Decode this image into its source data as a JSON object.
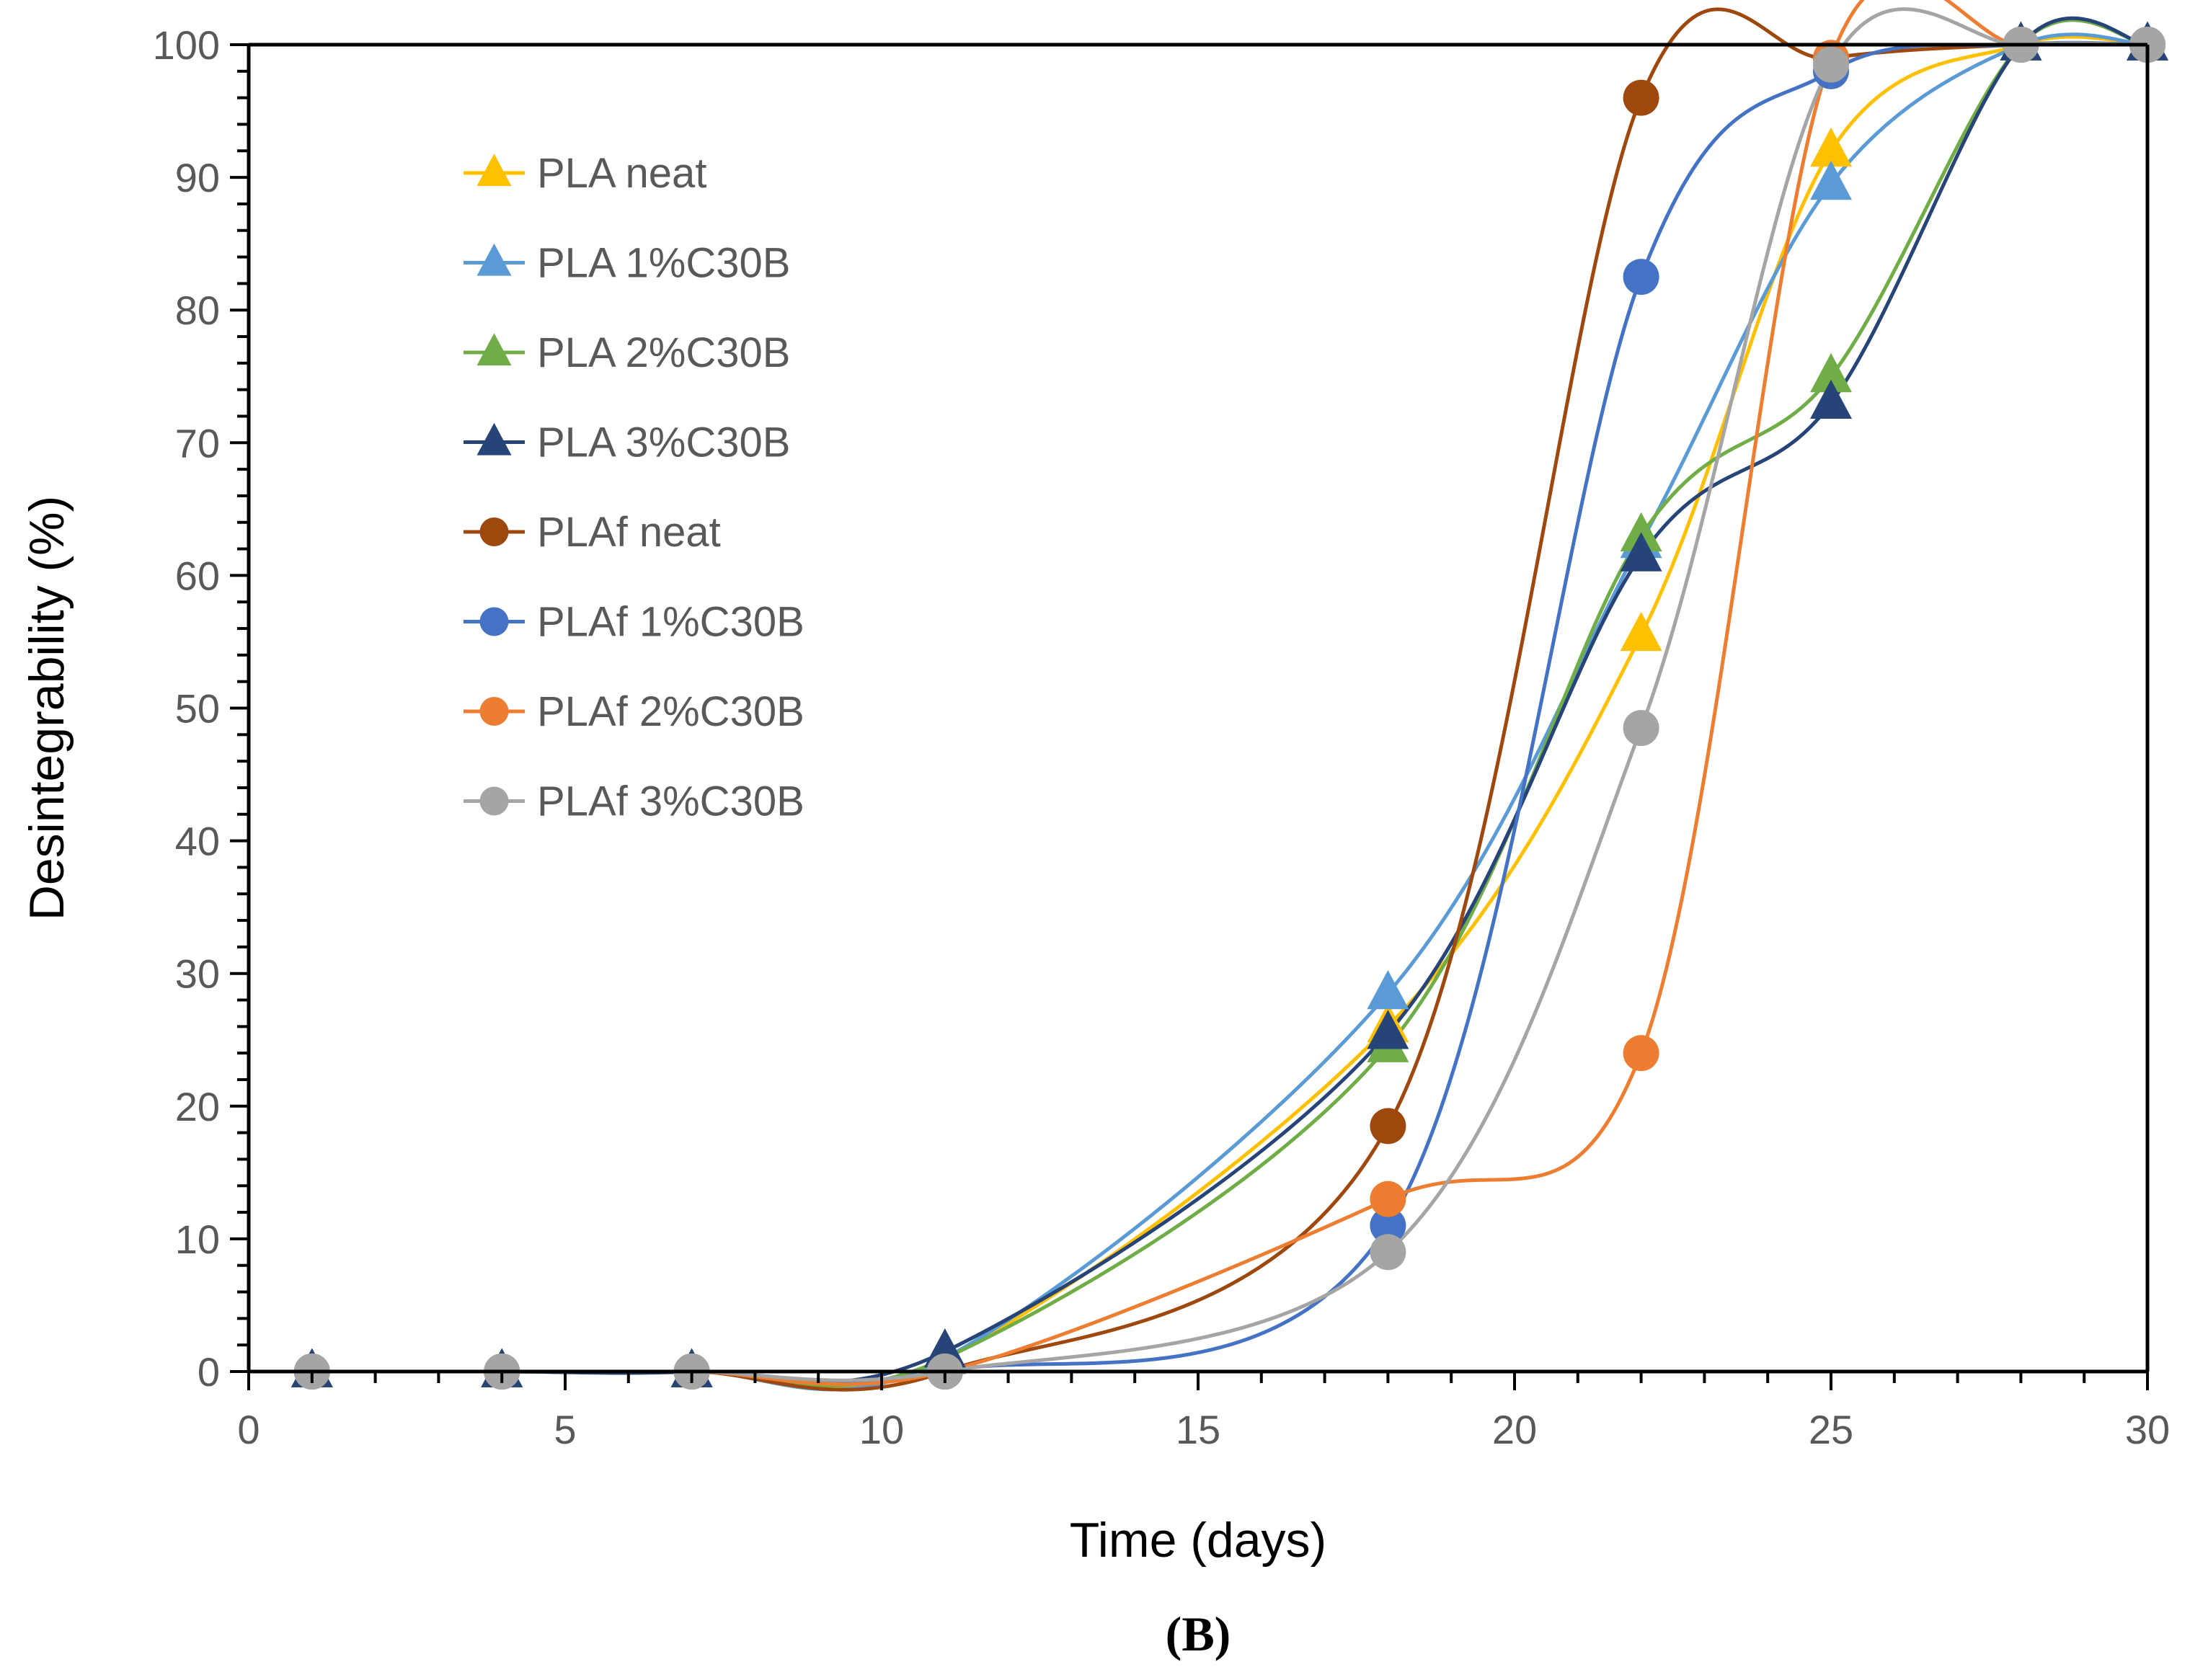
{
  "chart_data": {
    "type": "line",
    "title": "",
    "xlabel": "Time (days)",
    "ylabel": "Desintegrability (%)",
    "xlim": [
      0,
      30
    ],
    "ylim": [
      0,
      100
    ],
    "xticks": [
      0,
      5,
      10,
      15,
      20,
      25,
      30
    ],
    "yticks": [
      0,
      10,
      20,
      30,
      40,
      50,
      60,
      70,
      80,
      90,
      100
    ],
    "x_minor_step": 1,
    "y_minor_step": 2,
    "grid": false,
    "smooth": true,
    "legend_position": "top-left",
    "panel_label": "(B)",
    "series": [
      {
        "name": "PLA neat",
        "color": "#FFC000",
        "marker": "triangle",
        "x": [
          1,
          4,
          7,
          11,
          18,
          22,
          25,
          28,
          30
        ],
        "y": [
          0,
          0,
          0,
          1,
          26,
          55.5,
          92,
          100,
          100
        ]
      },
      {
        "name": "PLA 1%C30B",
        "color": "#5B9BD5",
        "marker": "triangle",
        "x": [
          1,
          4,
          7,
          11,
          18,
          22,
          25,
          28,
          30
        ],
        "y": [
          0,
          0,
          0,
          1,
          28.5,
          62.5,
          89.5,
          100,
          100
        ]
      },
      {
        "name": "PLA 2%C30B",
        "color": "#70AD47",
        "marker": "triangle",
        "x": [
          1,
          4,
          7,
          11,
          18,
          22,
          25,
          28,
          30
        ],
        "y": [
          0,
          0,
          0,
          1,
          24.5,
          63,
          75,
          100,
          100
        ]
      },
      {
        "name": "PLA 3%C30B",
        "color": "#264478",
        "marker": "triangle",
        "x": [
          1,
          4,
          7,
          11,
          18,
          22,
          25,
          28,
          30
        ],
        "y": [
          0,
          0,
          0,
          1.5,
          25.5,
          61.5,
          73,
          100,
          100
        ]
      },
      {
        "name": "PLAf neat",
        "color": "#9E480E",
        "marker": "circle",
        "x": [
          1,
          4,
          7,
          11,
          18,
          22,
          25,
          28,
          30
        ],
        "y": [
          0,
          0,
          0,
          0,
          18.5,
          96,
          99,
          100,
          100
        ]
      },
      {
        "name": "PLAf 1%C30B",
        "color": "#4472C4",
        "marker": "circle",
        "x": [
          1,
          4,
          7,
          11,
          18,
          22,
          25,
          28,
          30
        ],
        "y": [
          0,
          0,
          0,
          0,
          11,
          82.5,
          98,
          100,
          100
        ]
      },
      {
        "name": "PLAf 2%C30B",
        "color": "#ED7D31",
        "marker": "circle",
        "x": [
          1,
          4,
          7,
          11,
          18,
          22,
          25,
          28,
          30
        ],
        "y": [
          0,
          0,
          0,
          0,
          13,
          24,
          99,
          100,
          100
        ]
      },
      {
        "name": "PLAf 3%C30B",
        "color": "#A5A5A5",
        "marker": "circle",
        "x": [
          1,
          4,
          7,
          11,
          18,
          22,
          25,
          28,
          30
        ],
        "y": [
          0,
          0,
          0,
          0,
          9,
          48.5,
          98.5,
          100,
          100
        ]
      }
    ]
  }
}
